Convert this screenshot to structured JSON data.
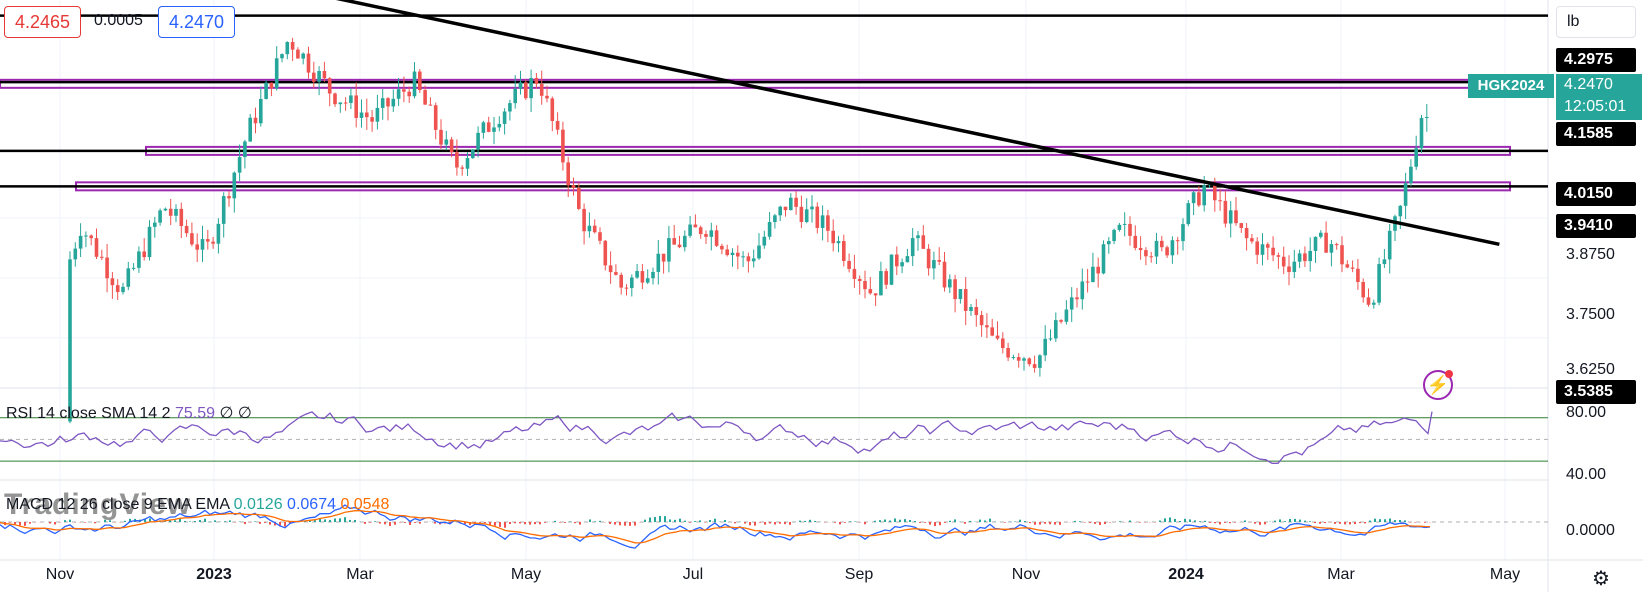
{
  "header": {
    "bid": "4.2465",
    "spread": "0.0005",
    "ask": "4.2470",
    "unit": "lb"
  },
  "colors": {
    "up": "#26a69a",
    "down": "#ef5350",
    "level": "#000000",
    "zone": "#9c27b0",
    "rsi": "#7e57c2",
    "macd": "#2962ff",
    "signal": "#ff6d00"
  },
  "chart_data": {
    "type": "candlestick",
    "symbol": "HGK2024",
    "last_price": "4.2470",
    "countdown": "12:05:01",
    "x_labels": [
      "Nov",
      "2023",
      "Mar",
      "May",
      "Jul",
      "Sep",
      "Nov",
      "2024",
      "Mar",
      "May"
    ],
    "x_bold": [
      "2023",
      "2024"
    ],
    "y_ticks": [
      3.625,
      3.75,
      3.875
    ],
    "y_tick_labels": [
      "3.6250",
      "3.7500",
      "3.8750"
    ],
    "ylim": [
      3.52,
      4.33
    ],
    "horizontal_levels": [
      {
        "value": 4.2975,
        "label": "4.2975"
      },
      {
        "value": 4.1585,
        "label": "4.1585"
      },
      {
        "value": 4.015,
        "label": "4.0150"
      },
      {
        "value": 3.941,
        "label": "3.9410"
      },
      {
        "value": 3.5385,
        "label": "3.5385"
      }
    ],
    "zones": [
      4.155,
      4.015,
      3.941
    ],
    "trendline": {
      "from": [
        "2023-01",
        4.36
      ],
      "to": [
        "2024-04",
        3.82
      ]
    },
    "close_path": [
      [
        "2022-10",
        3.45
      ],
      [
        "2022-11",
        3.86
      ],
      [
        "2022-11",
        3.72
      ],
      [
        "2022-12",
        3.9
      ],
      [
        "2022-12",
        3.8
      ],
      [
        "2023-01",
        4.05
      ],
      [
        "2023-01",
        4.25
      ],
      [
        "2023-02",
        4.14
      ],
      [
        "2023-02",
        4.08
      ],
      [
        "2023-03",
        4.16
      ],
      [
        "2023-03",
        3.98
      ],
      [
        "2023-04",
        4.09
      ],
      [
        "2023-04",
        4.17
      ],
      [
        "2023-05",
        3.88
      ],
      [
        "2023-05",
        3.73
      ],
      [
        "2023-06",
        3.8
      ],
      [
        "2023-06",
        3.86
      ],
      [
        "2023-07",
        3.78
      ],
      [
        "2023-07",
        3.91
      ],
      [
        "2023-08",
        3.85
      ],
      [
        "2023-08",
        3.72
      ],
      [
        "2023-09",
        3.83
      ],
      [
        "2023-09",
        3.72
      ],
      [
        "2023-10",
        3.61
      ],
      [
        "2023-10",
        3.58
      ],
      [
        "2023-11",
        3.72
      ],
      [
        "2023-11",
        3.85
      ],
      [
        "2023-12",
        3.8
      ],
      [
        "2023-12",
        3.94
      ],
      [
        "2024-01",
        3.83
      ],
      [
        "2024-01",
        3.78
      ],
      [
        "2024-02",
        3.83
      ],
      [
        "2024-02",
        3.7
      ],
      [
        "2024-03",
        3.9
      ],
      [
        "2024-03",
        4.1
      ],
      [
        "2024-03",
        4.03
      ],
      [
        "2024-03",
        4.247
      ]
    ]
  },
  "rsi": {
    "legend": "RSI 14 close SMA 14 2",
    "value": "75.59",
    "extra": "∅ ∅",
    "levels": [
      "80.00",
      "40.00"
    ],
    "upper": 70,
    "lower": 30,
    "mid": 50
  },
  "macd": {
    "legend": "MACD 12 26 close 9 EMA EMA",
    "hist": "0.0126",
    "macd_value": "0.0674",
    "signal_value": "0.0548",
    "zero_label": "0.0000"
  },
  "watermark": "TradingView"
}
